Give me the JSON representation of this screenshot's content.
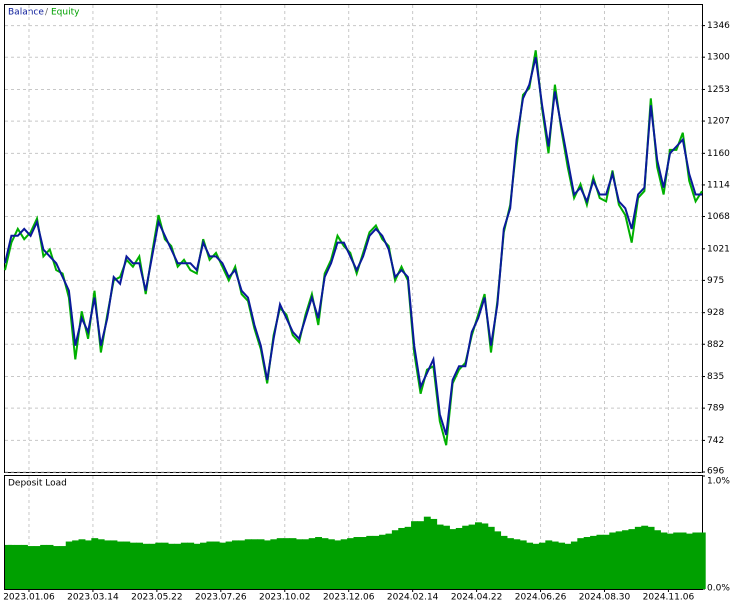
{
  "chart_data": [
    {
      "type": "line",
      "legend_separator": "/",
      "xlim": [
        0,
        109
      ],
      "ylim": [
        696,
        1376
      ],
      "yticks": [
        696,
        742,
        789,
        835,
        882,
        928,
        975,
        1021,
        1068,
        1114,
        1160,
        1207,
        1253,
        1300,
        1346
      ],
      "grid": true,
      "series": [
        {
          "name": "Equity",
          "color": "#00b000",
          "values": [
            990,
            1030,
            1050,
            1035,
            1045,
            1065,
            1010,
            1020,
            990,
            985,
            950,
            860,
            930,
            890,
            960,
            870,
            925,
            975,
            980,
            1005,
            995,
            1010,
            955,
            1015,
            1070,
            1035,
            1025,
            995,
            1005,
            990,
            985,
            1035,
            1005,
            1015,
            995,
            975,
            995,
            955,
            945,
            905,
            875,
            825,
            895,
            935,
            925,
            895,
            885,
            925,
            955,
            910,
            985,
            1005,
            1040,
            1025,
            1015,
            985,
            1015,
            1045,
            1055,
            1035,
            1025,
            975,
            995,
            975,
            870,
            810,
            845,
            850,
            770,
            735,
            825,
            845,
            855,
            895,
            925,
            955,
            870,
            945,
            1045,
            1085,
            1170,
            1245,
            1255,
            1310,
            1225,
            1160,
            1260,
            1195,
            1140,
            1095,
            1115,
            1085,
            1125,
            1095,
            1090,
            1135,
            1085,
            1070,
            1030,
            1095,
            1105,
            1240,
            1140,
            1100,
            1165,
            1165,
            1190,
            1120,
            1090,
            1105
          ]
        },
        {
          "name": "Balance",
          "color": "#0a1a9a",
          "values": [
            1000,
            1040,
            1040,
            1050,
            1040,
            1060,
            1020,
            1010,
            1000,
            980,
            960,
            880,
            920,
            900,
            950,
            880,
            920,
            980,
            970,
            1010,
            1000,
            1000,
            960,
            1010,
            1060,
            1040,
            1020,
            1000,
            1000,
            1000,
            990,
            1030,
            1010,
            1010,
            1000,
            980,
            990,
            960,
            950,
            910,
            880,
            830,
            890,
            940,
            920,
            900,
            890,
            920,
            950,
            920,
            980,
            1000,
            1030,
            1030,
            1010,
            990,
            1010,
            1040,
            1050,
            1040,
            1020,
            980,
            990,
            980,
            880,
            820,
            840,
            860,
            780,
            750,
            830,
            850,
            850,
            900,
            920,
            950,
            880,
            940,
            1050,
            1080,
            1180,
            1240,
            1260,
            1300,
            1230,
            1170,
            1250,
            1200,
            1150,
            1100,
            1110,
            1090,
            1120,
            1100,
            1100,
            1130,
            1090,
            1080,
            1050,
            1100,
            1110,
            1230,
            1150,
            1110,
            1160,
            1170,
            1180,
            1130,
            1100,
            1100
          ]
        }
      ]
    },
    {
      "type": "area",
      "title": "Deposit Load",
      "color": "#00a000",
      "xlim": [
        0,
        109
      ],
      "ylim": [
        0,
        1
      ],
      "yticks": [
        {
          "value": 1,
          "label": "1.0%"
        },
        {
          "value": 0,
          "label": "0.0%"
        }
      ],
      "grid": true,
      "xticks": [
        {
          "value": 3.75,
          "label": "2023.01.06"
        },
        {
          "value": 13.75,
          "label": "2023.03.14"
        },
        {
          "value": 23.75,
          "label": "2023.05.22"
        },
        {
          "value": 33.75,
          "label": "2023.07.26"
        },
        {
          "value": 43.75,
          "label": "2023.10.02"
        },
        {
          "value": 53.75,
          "label": "2023.12.06"
        },
        {
          "value": 63.75,
          "label": "2024.02.14"
        },
        {
          "value": 73.75,
          "label": "2024.04.22"
        },
        {
          "value": 83.75,
          "label": "2024.06.26"
        },
        {
          "value": 93.75,
          "label": "2024.08.30"
        },
        {
          "value": 103.75,
          "label": "2024.11.06"
        }
      ],
      "values": [
        0.39,
        0.39,
        0.39,
        0.39,
        0.38,
        0.38,
        0.39,
        0.39,
        0.38,
        0.38,
        0.42,
        0.43,
        0.44,
        0.43,
        0.45,
        0.44,
        0.43,
        0.43,
        0.42,
        0.42,
        0.41,
        0.41,
        0.4,
        0.4,
        0.41,
        0.41,
        0.4,
        0.4,
        0.41,
        0.41,
        0.4,
        0.41,
        0.42,
        0.42,
        0.41,
        0.42,
        0.43,
        0.43,
        0.44,
        0.44,
        0.44,
        0.43,
        0.44,
        0.45,
        0.45,
        0.45,
        0.44,
        0.44,
        0.45,
        0.46,
        0.45,
        0.44,
        0.43,
        0.44,
        0.45,
        0.46,
        0.46,
        0.47,
        0.47,
        0.48,
        0.49,
        0.52,
        0.54,
        0.55,
        0.6,
        0.6,
        0.64,
        0.62,
        0.57,
        0.56,
        0.53,
        0.54,
        0.56,
        0.57,
        0.59,
        0.58,
        0.55,
        0.51,
        0.47,
        0.45,
        0.44,
        0.43,
        0.41,
        0.4,
        0.41,
        0.43,
        0.42,
        0.41,
        0.4,
        0.42,
        0.45,
        0.46,
        0.47,
        0.48,
        0.48,
        0.5,
        0.51,
        0.52,
        0.53,
        0.55,
        0.56,
        0.55,
        0.52,
        0.5,
        0.49,
        0.5,
        0.5,
        0.49,
        0.5,
        0.5
      ]
    }
  ]
}
